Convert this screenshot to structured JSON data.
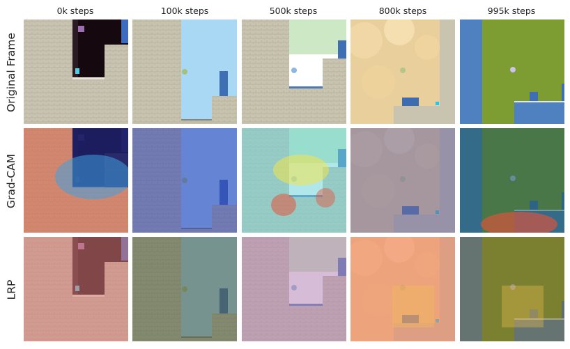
{
  "columns": [
    {
      "label": "0k steps"
    },
    {
      "label": "100k steps"
    },
    {
      "label": "500k steps"
    },
    {
      "label": "800k steps"
    },
    {
      "label": "995k steps"
    }
  ],
  "rows": [
    {
      "label": "Original Frame"
    },
    {
      "label": "Grad-CAM"
    },
    {
      "label": "LRP"
    }
  ],
  "scenes": [
    {
      "name": "dark-cave",
      "base": "#c9c4b1",
      "accent": "#15080f"
    },
    {
      "name": "sky-ledge",
      "base": "#c7c3ae",
      "accent": "#a9d8f4"
    },
    {
      "name": "white-cloud",
      "base": "#c8c4b0",
      "accent": "#cde8c4"
    },
    {
      "name": "peach-clouds",
      "base": "#e8cf9c",
      "accent": "#3d6db0"
    },
    {
      "name": "green-grass",
      "base": "#4f80c0",
      "accent": "#7d9c32"
    }
  ],
  "overlays": {
    "Grad-CAM": [
      "#d9583a",
      "#2d3fb8",
      "#6fd4d8",
      "#6f6aa0",
      "#1f5a5a"
    ],
    "LRP": [
      "#d87a78",
      "#4c5b3d",
      "#b585b5",
      "#f08060",
      "#7a6a30"
    ]
  }
}
